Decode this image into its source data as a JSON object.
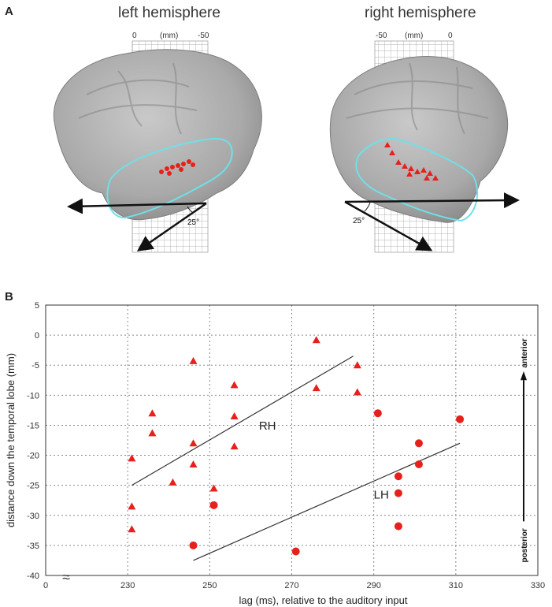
{
  "panel_a": {
    "label": "A",
    "left": {
      "title": "left hemisphere",
      "mm_ticks": [
        "0",
        "(mm)",
        "-50"
      ],
      "angle": "25°"
    },
    "right": {
      "title": "right hemisphere",
      "mm_ticks": [
        "-50",
        "(mm)",
        "0"
      ],
      "angle": "25°"
    }
  },
  "panel_b": {
    "label": "B"
  },
  "chart_data": {
    "type": "scatter",
    "xlabel": "lag (ms), relative to the auditory input",
    "ylabel": "distance down the temporal lobe (mm)",
    "xlim": [
      230,
      330
    ],
    "ylim": [
      -40,
      5
    ],
    "x_ticks": [
      "0",
      "230",
      "250",
      "270",
      "290",
      "310",
      "330"
    ],
    "y_ticks": [
      5,
      0,
      -5,
      -10,
      -15,
      -20,
      -25,
      -30,
      -35,
      -40
    ],
    "grid": true,
    "axis_break": "≈",
    "color": "#e8201c",
    "direction": {
      "top": "anterior",
      "bottom": "posterior"
    },
    "series": [
      {
        "name": "RH",
        "marker": "triangle",
        "points": [
          [
            231,
            -20.5
          ],
          [
            231,
            -28.5
          ],
          [
            231,
            -32.3
          ],
          [
            236,
            -13
          ],
          [
            236,
            -16.3
          ],
          [
            241,
            -24.5
          ],
          [
            246,
            -4.3
          ],
          [
            246,
            -18
          ],
          [
            246,
            -21.5
          ],
          [
            251,
            -25.5
          ],
          [
            256,
            -8.3
          ],
          [
            256,
            -13.5
          ],
          [
            256,
            -18.5
          ],
          [
            276,
            -0.8
          ],
          [
            276,
            -8.8
          ],
          [
            286,
            -5
          ],
          [
            286,
            -9.5
          ]
        ],
        "fit": [
          [
            231,
            -25
          ],
          [
            285,
            -3.5
          ]
        ]
      },
      {
        "name": "LH",
        "marker": "circle",
        "points": [
          [
            246,
            -35
          ],
          [
            251,
            -28.3
          ],
          [
            271,
            -36
          ],
          [
            291,
            -13
          ],
          [
            296,
            -23.5
          ],
          [
            296,
            -26.3
          ],
          [
            296,
            -31.8
          ],
          [
            301,
            -18
          ],
          [
            301,
            -21.5
          ],
          [
            311,
            -14
          ]
        ],
        "fit": [
          [
            246,
            -37.5
          ],
          [
            311,
            -18
          ]
        ]
      }
    ]
  }
}
